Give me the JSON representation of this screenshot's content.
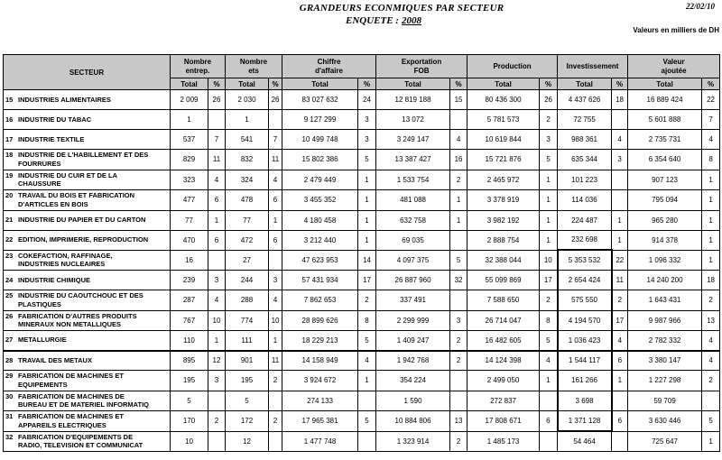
{
  "page": {
    "title_line1": "GRANDEURS ECONMIQUES PAR SECTEUR",
    "title_line2_prefix": "ENQUETE :",
    "title_line2_year": "2008",
    "date": "22/02/10",
    "units_note": "Valeurs en milliers de DH"
  },
  "table": {
    "header": {
      "secteur": "SECTEUR",
      "total_label": "Total",
      "pct_label": "%",
      "groups": [
        "Nombre\nentrep.",
        "Nombre\nets",
        "Chiffre\nd'affaire",
        "Exportation\nFOB",
        "Production",
        "Investissement",
        "Valeur\najoutée"
      ]
    },
    "rows": [
      {
        "num": "15",
        "name": "INDUSTRIES ALIMENTAIRES",
        "values": [
          "2 009",
          "26",
          "2 030",
          "26",
          "83 027 632",
          "24",
          "12 819 188",
          "15",
          "80 436 300",
          "26",
          "4 437 626",
          "18",
          "16 889 424",
          "22"
        ]
      },
      {
        "num": "16",
        "name": "INDUSTRIE DU TABAC",
        "values": [
          "1",
          "",
          "1",
          "",
          "9 127 299",
          "3",
          "13 072",
          "",
          "5 781 573",
          "2",
          "72 755",
          "",
          "5 601 888",
          "7"
        ]
      },
      {
        "num": "17",
        "name": "INDUSTRIE TEXTILE",
        "values": [
          "537",
          "7",
          "541",
          "7",
          "10 499 748",
          "3",
          "3 249 147",
          "4",
          "10 619 844",
          "3",
          "988 361",
          "4",
          "2 735 731",
          "4"
        ]
      },
      {
        "num": "18",
        "name": "INDUSTRIE DE L'HABILLEMENT ET DES\nFOURRURES",
        "values": [
          "829",
          "11",
          "832",
          "11",
          "15 802 386",
          "5",
          "13 387 427",
          "16",
          "15 721 876",
          "5",
          "635 344",
          "3",
          "6 354 640",
          "8"
        ]
      },
      {
        "num": "19",
        "name": "INDUSTRIE DU CUIR ET DE LA\nCHAUSSURE",
        "values": [
          "323",
          "4",
          "324",
          "4",
          "2 479 449",
          "1",
          "1 533 754",
          "2",
          "2 465 972",
          "1",
          "101 223",
          "",
          "907 123",
          "1"
        ]
      },
      {
        "num": "20",
        "name": "TRAVAIL DU BOIS ET FABRICATION\nD'ARTICLES EN BOIS",
        "values": [
          "477",
          "6",
          "478",
          "6",
          "3 455 352",
          "1",
          "481 088",
          "1",
          "3 378 919",
          "1",
          "114 036",
          "",
          "795 094",
          "1"
        ]
      },
      {
        "num": "21",
        "name": "INDUSTRIE DU PAPIER ET DU CARTON",
        "values": [
          "77",
          "1",
          "77",
          "1",
          "4 180 458",
          "1",
          "632 758",
          "1",
          "3 982 192",
          "1",
          "224 487",
          "1",
          "965 280",
          "1"
        ]
      },
      {
        "num": "22",
        "name": "EDITION, IMPRIMERIE, REPRODUCTION",
        "values": [
          "470",
          "6",
          "472",
          "6",
          "3 212 440",
          "1",
          "69 035",
          "",
          "2 888 754",
          "1",
          "232 698",
          "1",
          "914 378",
          "1"
        ]
      },
      {
        "num": "23",
        "name": "COKEFACTION, RAFFINAGE,\nINDUSTRIES NUCLEAIRES",
        "values": [
          "16",
          "",
          "27",
          "",
          "47 623 953",
          "14",
          "4 097 375",
          "5",
          "32 388 044",
          "10",
          "5 353 532",
          "22",
          "1 096 332",
          "1"
        ]
      },
      {
        "num": "24",
        "name": "INDUSTRIE CHIMIQUE",
        "values": [
          "239",
          "3",
          "244",
          "3",
          "57 431 934",
          "17",
          "26 887 960",
          "32",
          "55 099 869",
          "17",
          "2 654 424",
          "11",
          "14 240 200",
          "18"
        ]
      },
      {
        "num": "25",
        "name": "INDUSTRIE DU CAOUTCHOUC ET DES\nPLASTIQUES",
        "values": [
          "287",
          "4",
          "288",
          "4",
          "7 862 653",
          "2",
          "337 491",
          "",
          "7 588 650",
          "2",
          "575 550",
          "2",
          "1 643 431",
          "2"
        ]
      },
      {
        "num": "26",
        "name": "FABRICATION D'AUTRES PRODUITS\nMINERAUX NON METALLIQUES",
        "values": [
          "767",
          "10",
          "774",
          "10",
          "28 899 626",
          "8",
          "2 299 999",
          "3",
          "26 714 047",
          "8",
          "4 194 570",
          "17",
          "9 987 966",
          "13"
        ]
      },
      {
        "num": "27",
        "name": "METALLURGIE",
        "values": [
          "110",
          "1",
          "111",
          "1",
          "18 229 213",
          "5",
          "1 409 247",
          "2",
          "16 482 605",
          "5",
          "1 036 423",
          "4",
          "2 782 332",
          "4"
        ]
      },
      {
        "num": "28",
        "name": "TRAVAIL DES METAUX",
        "values": [
          "895",
          "12",
          "901",
          "11",
          "14 158 949",
          "4",
          "1 942 768",
          "2",
          "14 124 398",
          "4",
          "1 544 117",
          "6",
          "3 380 147",
          "4"
        ]
      },
      {
        "num": "29",
        "name": "FABRICATION DE MACHINES ET\nEQUIPEMENTS",
        "values": [
          "195",
          "3",
          "195",
          "2",
          "3 924 672",
          "1",
          "354 224",
          "",
          "2 499 050",
          "1",
          "161 266",
          "1",
          "1 227 298",
          "2"
        ]
      },
      {
        "num": "30",
        "name": "FABRICATION DE MACHINES DE\nBUREAU ET DE MATERIEL INFORMATIQ",
        "values": [
          "5",
          "",
          "5",
          "",
          "274 133",
          "",
          "1 590",
          "",
          "272 837",
          "",
          "3 698",
          "",
          "59 709",
          ""
        ]
      },
      {
        "num": "31",
        "name": "FABRICATION DE MACHINES ET\nAPPAREILS ELECTRIQUES",
        "values": [
          "170",
          "2",
          "172",
          "2",
          "17 965 381",
          "5",
          "10 884 806",
          "13",
          "17 808 671",
          "6",
          "1 371 128",
          "6",
          "3 630 446",
          "5"
        ]
      },
      {
        "num": "32",
        "name": "FABRICATION D'EQUIPEMENTS DE\nRADIO, TELEVISION ET COMMUNICAT",
        "values": [
          "10",
          "",
          "12",
          "",
          "1 477 748",
          "",
          "1 323 914",
          "2",
          "1 485 173",
          "",
          "54 464",
          "",
          "725 647",
          "1"
        ]
      }
    ]
  }
}
